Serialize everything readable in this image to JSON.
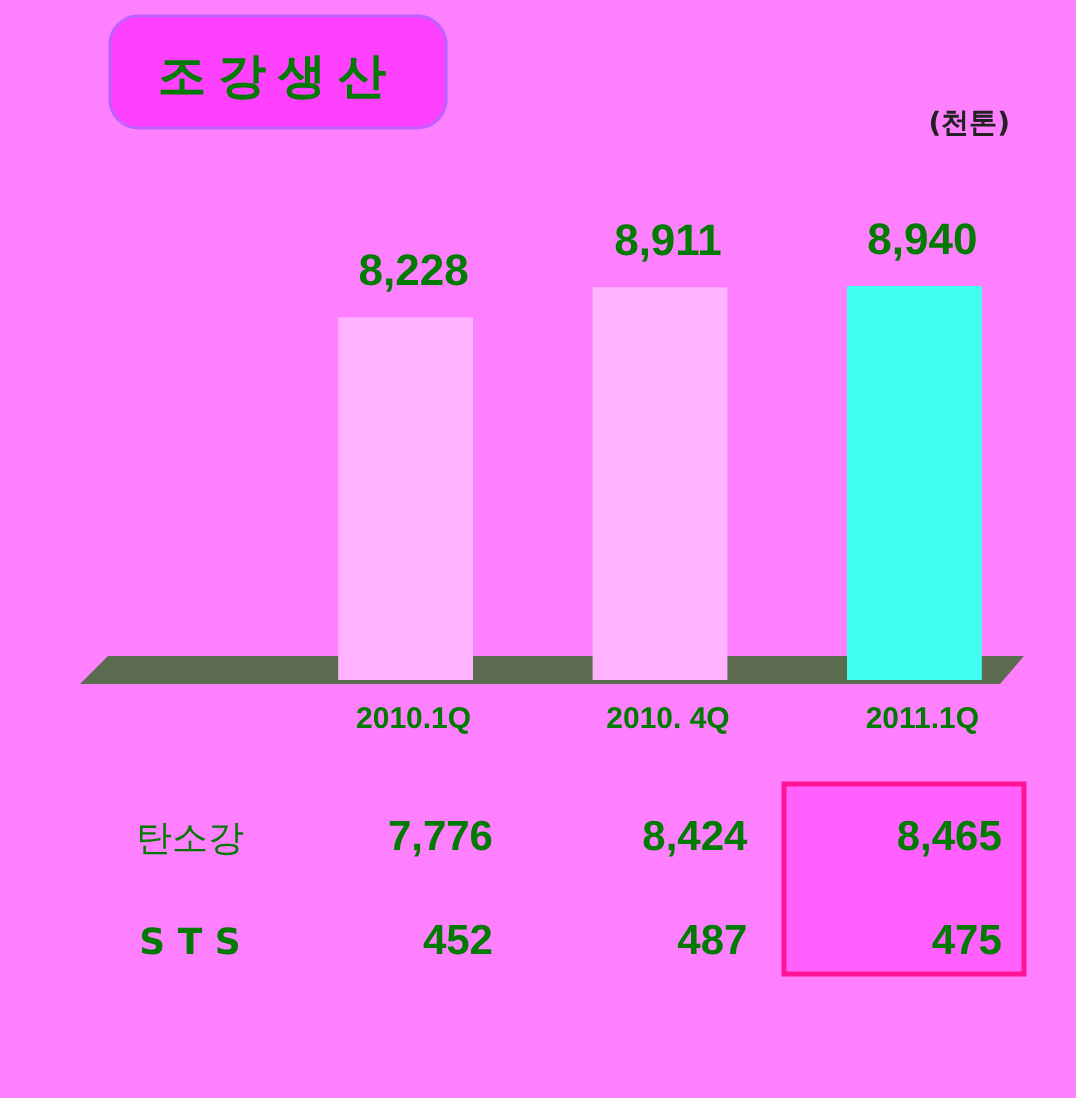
{
  "chart_data": {
    "type": "bar",
    "title": "조강생산",
    "categories": [
      "2010.1Q",
      "2010. 4Q",
      "2011.1Q"
    ],
    "values": [
      8228,
      8911,
      8940
    ],
    "colors": [
      "#ffb3ff",
      "#ffb3ff",
      "#40fff0"
    ],
    "value_labels": [
      "8,228",
      "8,911",
      "8,940"
    ],
    "annotations": [
      "(천톤)",
      "탄소강",
      "7,776",
      "8,424",
      "8,465",
      "S  T  S",
      "452",
      "487",
      "475"
    ]
  }
}
